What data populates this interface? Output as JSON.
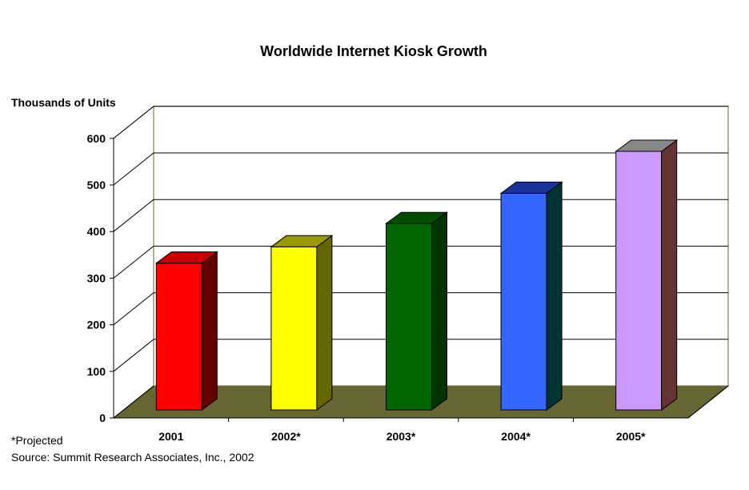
{
  "chart_data": {
    "type": "bar",
    "title": "Worldwide Internet Kiosk Growth",
    "ylabel": "Thousands of Units",
    "xlabel": "",
    "categories": [
      "2001",
      "2002*",
      "2003*",
      "2004*",
      "2005*"
    ],
    "values": [
      315,
      350,
      400,
      465,
      555
    ],
    "yticks": [
      0,
      100,
      200,
      300,
      400,
      500,
      600
    ],
    "ylim": [
      0,
      600
    ],
    "grid": true,
    "legend": "none",
    "bar_colors": [
      {
        "front": "#ff0000",
        "side": "#660000",
        "top": "#cc0000"
      },
      {
        "front": "#ffff00",
        "side": "#666600",
        "top": "#999900"
      },
      {
        "front": "#006600",
        "side": "#003300",
        "top": "#004d00"
      },
      {
        "front": "#3366ff",
        "side": "#003333",
        "top": "#1a3399"
      },
      {
        "front": "#cc99ff",
        "side": "#663333",
        "top": "#888888"
      }
    ],
    "floor_color": "#666633"
  },
  "footnotes": {
    "projected": "*Projected",
    "source": "Source: Summit Research Associates, Inc., 2002"
  }
}
